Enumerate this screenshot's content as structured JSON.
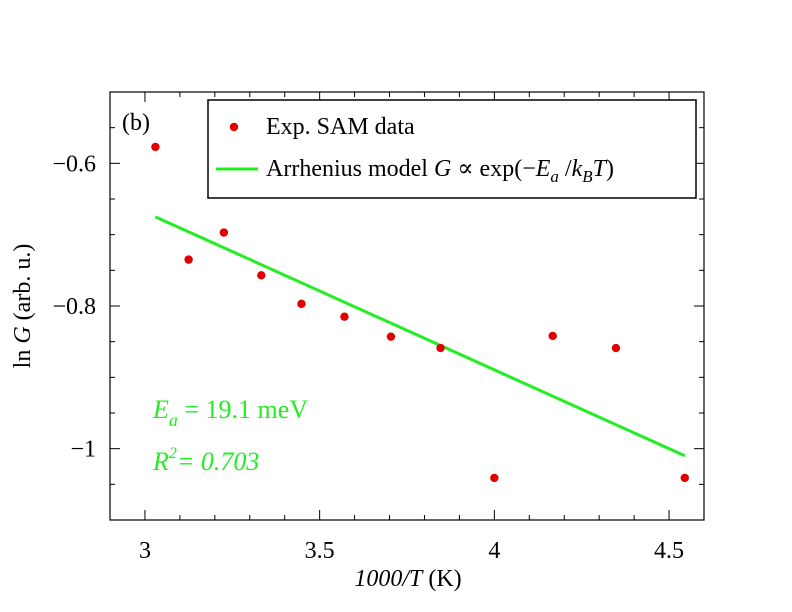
{
  "chart_data": {
    "type": "scatter",
    "panel_label": "(b)",
    "xlabel_main": "1000/",
    "xlabel_var": "T",
    "xlabel_unit": " (K)",
    "ylabel_main": "ln ",
    "ylabel_var": "G",
    "ylabel_unit": " (arb. u.)",
    "xlim": [
      2.9,
      4.6
    ],
    "ylim": [
      -1.1,
      -0.5
    ],
    "x_ticks": [
      {
        "value": 3,
        "label": "3"
      },
      {
        "value": 3.5,
        "label": "3.5"
      },
      {
        "value": 4,
        "label": "4"
      },
      {
        "value": 4.5,
        "label": "4.5"
      }
    ],
    "y_ticks": [
      {
        "value": -0.6,
        "label": "−0.6"
      },
      {
        "value": -0.8,
        "label": "−0.8"
      },
      {
        "value": -1.0,
        "label": "−1"
      }
    ],
    "series": [
      {
        "name": "Exp. SAM data",
        "kind": "points",
        "color": "#e00000",
        "points": [
          {
            "x": 3.03,
            "y": -0.577
          },
          {
            "x": 3.125,
            "y": -0.735
          },
          {
            "x": 3.226,
            "y": -0.697
          },
          {
            "x": 3.333,
            "y": -0.757
          },
          {
            "x": 3.448,
            "y": -0.797
          },
          {
            "x": 3.571,
            "y": -0.815
          },
          {
            "x": 3.704,
            "y": -0.843
          },
          {
            "x": 3.846,
            "y": -0.859
          },
          {
            "x": 4.0,
            "y": -1.041
          },
          {
            "x": 4.167,
            "y": -0.842
          },
          {
            "x": 4.348,
            "y": -0.859
          },
          {
            "x": 4.545,
            "y": -1.041
          }
        ]
      },
      {
        "name": "Arrhenius model",
        "kind": "line",
        "color": "#22ee22",
        "points": [
          {
            "x": 3.03,
            "y": -0.675
          },
          {
            "x": 4.545,
            "y": -1.01
          }
        ]
      }
    ],
    "legend": {
      "position": "top-right",
      "entry1": "Exp. SAM data",
      "entry2_text": "Arrhenius model ",
      "entry2_var": "G",
      "entry2_prop": " ∝ exp(−",
      "entry2_E": "E",
      "entry2_a": "a",
      "entry2_slash": " /",
      "entry2_k": "k",
      "entry2_B": "B",
      "entry2_T": "T",
      "entry2_close": ")"
    },
    "annotations": {
      "ea_var": "E",
      "ea_sub": "a",
      "ea_text": " = 19.1 meV",
      "r2_var": "R",
      "r2_sup": "2",
      "r2_text": "= 0.703",
      "color": "#22ee22"
    }
  }
}
